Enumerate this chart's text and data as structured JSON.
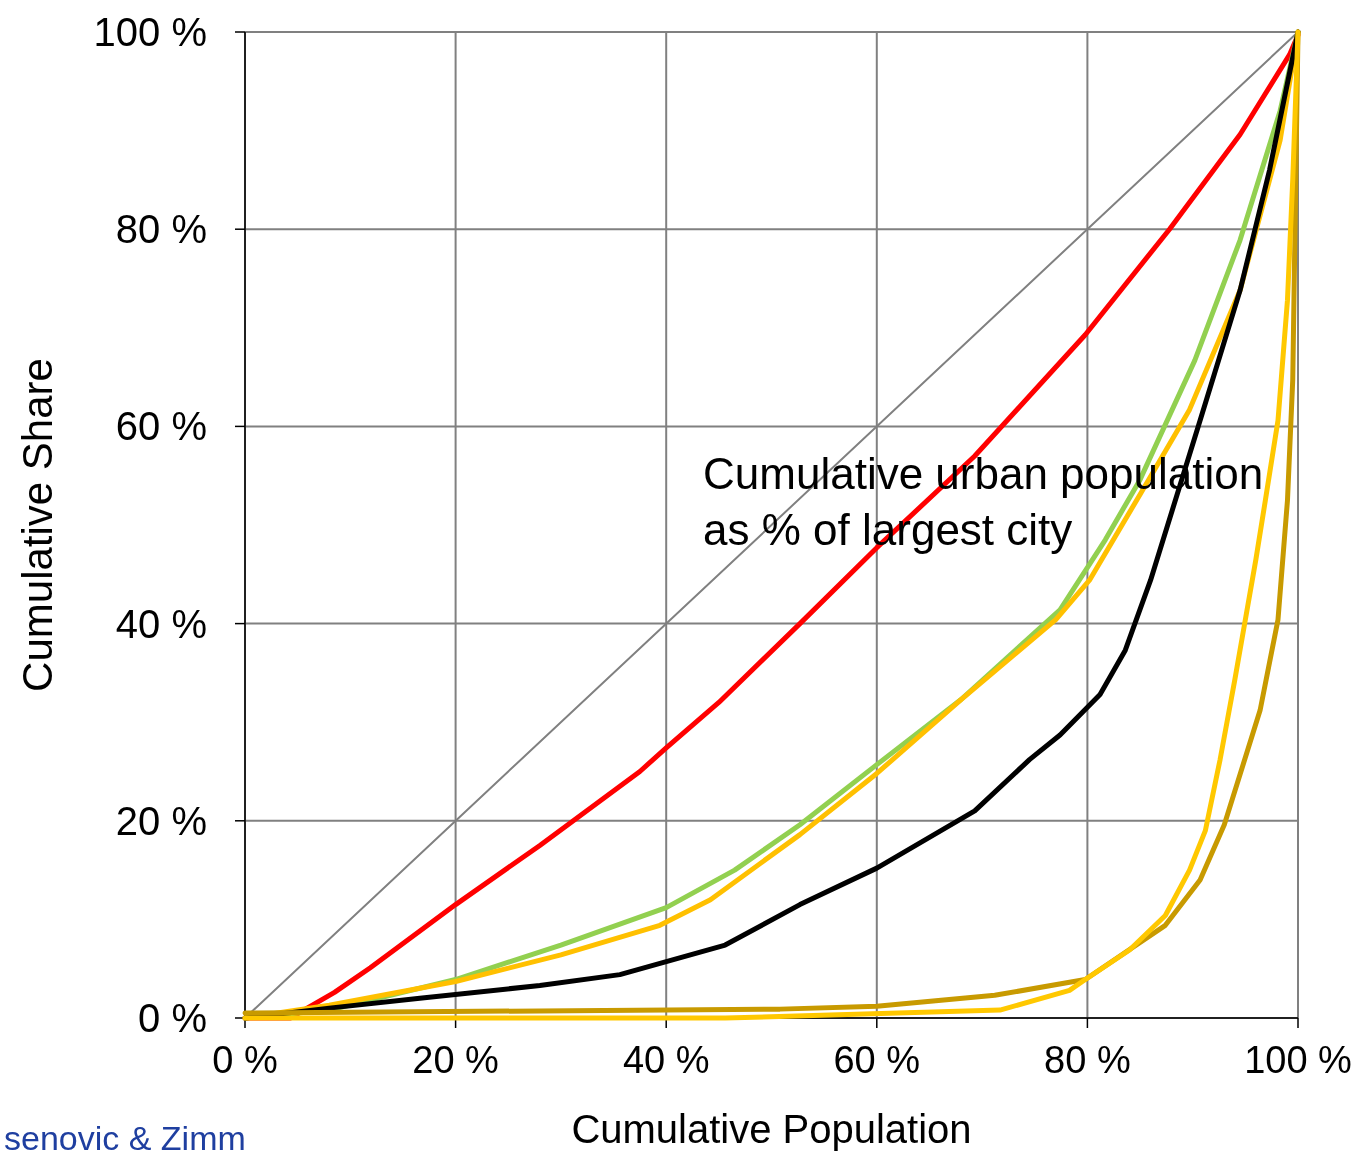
{
  "chart_data": {
    "type": "line",
    "xlabel": "Cumulative Population",
    "ylabel": "Cumulative Share",
    "xlim": [
      0,
      100
    ],
    "ylim": [
      0,
      100
    ],
    "xticks": [
      {
        "value": 0,
        "label": "0 %"
      },
      {
        "value": 20,
        "label": "20 %"
      },
      {
        "value": 40,
        "label": "40 %"
      },
      {
        "value": 60,
        "label": "60 %"
      },
      {
        "value": 80,
        "label": "80 %"
      },
      {
        "value": 100,
        "label": "100 %"
      }
    ],
    "yticks": [
      {
        "value": 0,
        "label": "0 %"
      },
      {
        "value": 20,
        "label": "20 %"
      },
      {
        "value": 40,
        "label": "40 %"
      },
      {
        "value": 60,
        "label": "60 %"
      },
      {
        "value": 80,
        "label": "80 %"
      },
      {
        "value": 100,
        "label": "100 %"
      }
    ],
    "grid": true,
    "marker": "none",
    "line_style": "solid",
    "annotations": [
      "Cumulative urban population\nas % of largest city",
      "senovic & Zimm"
    ],
    "series": [
      {
        "color": "#808080",
        "x": [
          0,
          100
        ],
        "values": [
          0,
          100
        ]
      },
      {
        "color": "#ff0000",
        "x": [
          0,
          4.3,
          8.5,
          11.9,
          20,
          28,
          37.5,
          40,
          45,
          52.7,
          60,
          69.3,
          79.8,
          87.8,
          94.5,
          99.2,
          100
        ],
        "values": [
          0,
          0,
          2.6,
          5.1,
          11.5,
          17.5,
          25,
          27.4,
          32,
          40,
          47.7,
          57,
          69.3,
          80,
          89.6,
          97.7,
          99.7
        ]
      },
      {
        "color": "#92d050",
        "x": [
          0,
          8,
          20,
          30,
          40,
          46.5,
          52.7,
          60,
          68,
          77.4,
          81.7,
          85,
          90.2,
          94.5,
          98.3,
          100
        ],
        "values": [
          0,
          0.8,
          3.9,
          7.4,
          11.2,
          15,
          19.6,
          25.7,
          32.3,
          41.4,
          48.5,
          54.6,
          66.7,
          78.9,
          92,
          100
        ]
      },
      {
        "color": "#ffc000",
        "x": [
          0,
          8,
          20,
          30,
          39.4,
          44.2,
          52.7,
          60,
          68,
          77,
          80.2,
          85,
          89.7,
          94.5,
          98.3,
          100
        ],
        "values": [
          0,
          1.3,
          3.7,
          6.4,
          9.4,
          12,
          18.6,
          24.8,
          32.3,
          40.4,
          44.4,
          53.1,
          61.7,
          73.8,
          89,
          100
        ]
      },
      {
        "color": "#000000",
        "x": [
          0,
          8,
          16.6,
          28,
          35.6,
          45.6,
          52.7,
          60,
          69.3,
          74.5,
          77.4,
          81.2,
          83.6,
          86,
          90.7,
          94.5,
          97.3,
          100
        ],
        "values": [
          0,
          1,
          2,
          3.3,
          4.4,
          7.4,
          11.5,
          15.2,
          21,
          26.2,
          28.7,
          32.8,
          37.3,
          44.4,
          60.6,
          73.8,
          86,
          100
        ]
      },
      {
        "color": "#c89a00",
        "x": [
          0,
          50.8,
          60,
          71.2,
          79.8,
          87.4,
          90.7,
          93,
          96.4,
          98.1,
          99,
          99.5,
          100
        ],
        "values": [
          0.5,
          0.9,
          1.2,
          2.3,
          3.9,
          9.4,
          14,
          19.6,
          31.2,
          40.4,
          52.5,
          64.7,
          100
        ]
      },
      {
        "color": "#ffc800",
        "x": [
          0,
          45.6,
          71.7,
          78.3,
          79.8,
          84,
          87.4,
          89.7,
          91.2,
          92.6,
          94,
          95,
          96,
          96.9,
          98.1,
          99,
          99.5,
          100
        ],
        "values": [
          0,
          0,
          0.8,
          2.8,
          3.9,
          6.9,
          10.4,
          15,
          19,
          26.2,
          34.3,
          40.4,
          46.5,
          52.5,
          60.6,
          72.8,
          85,
          100
        ]
      }
    ]
  }
}
